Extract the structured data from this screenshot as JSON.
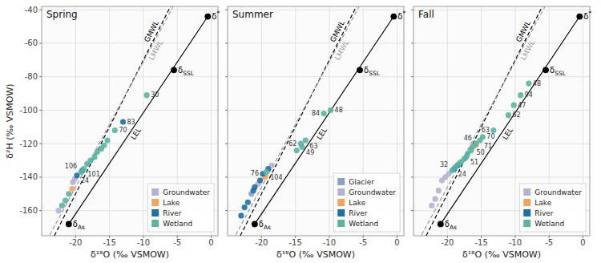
{
  "chart_data": [
    {
      "type": "scatter",
      "title": "Spring",
      "xlabel": "δ¹⁸O (‰ VSMOW)",
      "ylabel": "δ²H (‰ VSMOW)",
      "xlim": [
        -25,
        1
      ],
      "ylim": [
        -175,
        -38
      ],
      "xticks": [
        -20,
        -15,
        -10,
        -5,
        0
      ],
      "yticks": [
        -160,
        -140,
        -120,
        -100,
        -80,
        -60,
        -40
      ],
      "grid": true,
      "legend": "lower right",
      "series": [
        {
          "name": "GMWL",
          "type": "line",
          "color": "#000000",
          "line_style": "dashed",
          "x": [
            -23.125,
            -6
          ],
          "values": [
            -175,
            -38
          ]
        },
        {
          "name": "LMWL",
          "type": "line",
          "color": "#999999",
          "line_style": "dashed",
          "x": [
            -23.8,
            -5.6
          ],
          "values": [
            -174.5,
            -38
          ]
        },
        {
          "name": "LEL",
          "type": "line",
          "color": "#000000",
          "line_style": "solid",
          "x": [
            -21.0,
            -0.5
          ],
          "values": [
            -168,
            -44
          ]
        },
        {
          "type": "scatter",
          "color": "#000000",
          "marker": "circle",
          "x": [
            -0.5,
            -5.5,
            -21.0
          ],
          "values": [
            -44,
            -76,
            -168
          ],
          "labels": [
            "δ*",
            "δSSL",
            "δAs"
          ]
        },
        {
          "name": "Groundwater",
          "type": "scatter",
          "color": "#b3b3d1",
          "marker": "circle",
          "x": [
            -20.1,
            -20.4,
            -22.5
          ],
          "values": [
            -141,
            -143,
            -160
          ],
          "labels": [
            null,
            null,
            null
          ]
        },
        {
          "name": "Lake",
          "type": "scatter",
          "color": "#f4a460",
          "marker": "circle",
          "x": [
            -20.5
          ],
          "values": [
            -147
          ],
          "labels": [
            null
          ]
        },
        {
          "name": "River",
          "type": "scatter",
          "color": "#1d6fa4",
          "marker": "circle",
          "x": [
            -13.0,
            -19.0,
            -19.8
          ],
          "values": [
            -107,
            -136,
            -139
          ],
          "labels": [
            "83",
            null,
            "24"
          ]
        },
        {
          "name": "Wetland",
          "type": "scatter",
          "color": "#5ab4a0",
          "marker": "circle",
          "x": [
            -9.5,
            -14.2,
            -15.3,
            -15.8,
            -16.2,
            -16.8,
            -17.2,
            -17.8,
            -18.3,
            -18.8,
            -19.2,
            -21.0,
            -21.5,
            -22.0
          ],
          "values": [
            -91,
            -112,
            -118,
            -121,
            -123,
            -125,
            -128,
            -130,
            -132,
            -135,
            -137,
            -150,
            -154,
            -157
          ],
          "labels": [
            "30",
            "70",
            null,
            null,
            null,
            null,
            null,
            null,
            null,
            "101",
            "106",
            null,
            null,
            null
          ]
        }
      ]
    },
    {
      "type": "scatter",
      "title": "Summer",
      "xlabel": "δ¹⁸O (‰ VSMOW)",
      "tick_labels": "x",
      "xlim": [
        -25,
        1
      ],
      "ylim": [
        -175,
        -38
      ],
      "xticks": [
        -20,
        -15,
        -10,
        -5,
        0
      ],
      "yticks": [
        -160,
        -140,
        -120,
        -100,
        -80,
        -60,
        -40
      ],
      "grid": true,
      "legend": "lower right",
      "series": [
        {
          "name": "GMWL",
          "type": "line",
          "color": "#000000",
          "line_style": "dashed",
          "x": [
            -23.125,
            -6
          ],
          "values": [
            -175,
            -38
          ]
        },
        {
          "name": "LMWL",
          "type": "line",
          "color": "#999999",
          "line_style": "dashed",
          "x": [
            -23.8,
            -5.6
          ],
          "values": [
            -174.5,
            -38
          ]
        },
        {
          "name": "LEL",
          "type": "line",
          "color": "#000000",
          "line_style": "solid",
          "x": [
            -21.0,
            -0.5
          ],
          "values": [
            -168,
            -44
          ]
        },
        {
          "type": "scatter",
          "color": "#000000",
          "marker": "circle",
          "x": [
            -0.5,
            -5.5,
            -21.0
          ],
          "values": [
            -44,
            -76,
            -168
          ],
          "labels": [
            "δ*",
            "δSSL",
            "δAs"
          ]
        },
        {
          "name": "Glacier",
          "type": "scatter",
          "color": "#8da0cb",
          "marker": "circle",
          "x": [
            -21.5
          ],
          "values": [
            -150
          ],
          "labels": [
            null
          ]
        },
        {
          "name": "Groundwater",
          "type": "scatter",
          "color": "#b3b3d1",
          "marker": "circle",
          "x": [
            -18.5,
            -20.5
          ],
          "values": [
            -133,
            -144
          ],
          "labels": [
            null,
            null
          ]
        },
        {
          "name": "Lake",
          "type": "scatter",
          "color": "#f4a460",
          "marker": "circle",
          "x": [
            -19.5
          ],
          "values": [
            -140
          ],
          "labels": [
            null
          ]
        },
        {
          "name": "River",
          "type": "scatter",
          "color": "#1d6fa4",
          "marker": "circle",
          "x": [
            -19.0,
            -19.8,
            -20.2,
            -21.0,
            -21.2,
            -22.0,
            -22.5,
            -23.0
          ],
          "values": [
            -135,
            -138,
            -142,
            -146,
            -148,
            -155,
            -158,
            -163
          ],
          "labels": [
            null,
            "76",
            null,
            null,
            null,
            null,
            null,
            null
          ]
        },
        {
          "name": "Wetland",
          "type": "scatter",
          "color": "#5ab4a0",
          "marker": "circle",
          "x": [
            -9.8,
            -10.8,
            -13.5,
            -14.2,
            -14.0,
            -14.8,
            -19.3
          ],
          "values": [
            -100,
            -102,
            -118,
            -120,
            -122,
            -124,
            -137
          ],
          "labels": [
            "48",
            "84",
            "63",
            "62",
            "49",
            null,
            "104"
          ]
        }
      ]
    },
    {
      "type": "scatter",
      "title": "Fall",
      "xlabel": "δ¹⁸O (‰ VSMOW)",
      "tick_labels": "x",
      "xlim": [
        -25,
        1
      ],
      "ylim": [
        -175,
        -38
      ],
      "xticks": [
        -20,
        -15,
        -10,
        -5,
        0
      ],
      "yticks": [
        -160,
        -140,
        -120,
        -100,
        -80,
        -60,
        -40
      ],
      "grid": true,
      "legend": "lower right",
      "series": [
        {
          "name": "GMWL",
          "type": "line",
          "color": "#000000",
          "line_style": "dashed",
          "x": [
            -23.125,
            -6
          ],
          "values": [
            -175,
            -38
          ]
        },
        {
          "name": "LMWL",
          "type": "line",
          "color": "#999999",
          "line_style": "dashed",
          "x": [
            -23.8,
            -5.6
          ],
          "values": [
            -174.5,
            -38
          ]
        },
        {
          "name": "LEL",
          "type": "line",
          "color": "#000000",
          "line_style": "solid",
          "x": [
            -21.0,
            -0.5
          ],
          "values": [
            -168,
            -44
          ]
        },
        {
          "type": "scatter",
          "color": "#000000",
          "marker": "circle",
          "x": [
            -0.5,
            -5.5,
            -21.0
          ],
          "values": [
            -44,
            -76,
            -168
          ],
          "labels": [
            "δ*",
            "δSSL",
            "δAs"
          ]
        },
        {
          "name": "Groundwater",
          "type": "scatter",
          "color": "#b3b3d1",
          "marker": "circle",
          "x": [
            -19.8,
            -20.3,
            -20.8,
            -21.3,
            -21.8,
            -22.3
          ],
          "values": [
            -138,
            -140,
            -142,
            -148,
            -153,
            -157
          ],
          "labels": [
            null,
            null,
            null,
            null,
            null,
            null
          ]
        },
        {
          "name": "Lake",
          "type": "scatter",
          "color": "#f4a460",
          "marker": "circle",
          "x": [
            -15.8
          ],
          "values": [
            -121
          ],
          "labels": [
            null
          ]
        },
        {
          "name": "River",
          "type": "scatter",
          "color": "#1d6fa4",
          "marker": "circle",
          "x": [
            -18.5,
            -19.0
          ],
          "values": [
            -133,
            -135
          ],
          "labels": [
            null,
            "24"
          ]
        },
        {
          "name": "Wetland",
          "type": "scatter",
          "color": "#5ab4a0",
          "marker": "circle",
          "x": [
            -8.0,
            -9.2,
            -10.2,
            -11.0,
            -13.2,
            -14.8,
            -15.2,
            -15.8,
            -16.3,
            -16.5,
            -17.0,
            -17.2,
            -17.5,
            -18.0,
            -18.3,
            -18.8,
            -19.3
          ],
          "values": [
            -84,
            -91,
            -97,
            -103,
            -112,
            -116,
            -118,
            -120,
            -122,
            -124,
            -126,
            -128,
            -129,
            -131,
            -132,
            -134,
            -136
          ],
          "labels": [
            "48",
            "94",
            "47",
            "62",
            "63",
            "70",
            "71",
            "46",
            "50",
            null,
            null,
            "51",
            null,
            null,
            null,
            null,
            "32"
          ]
        }
      ]
    }
  ]
}
